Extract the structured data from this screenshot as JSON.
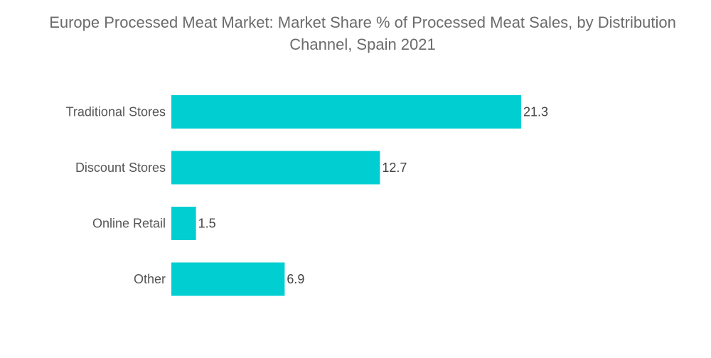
{
  "chart_data": {
    "type": "bar",
    "orientation": "horizontal",
    "title": "Europe Processed Meat Market: Market Share % of Processed Meat Sales, by Distribution Channel, Spain 2021",
    "xlabel": "",
    "ylabel": "",
    "categories": [
      "Traditional Stores",
      "Discount Stores",
      "Online Retail",
      "Other"
    ],
    "values": [
      21.3,
      12.7,
      1.5,
      6.9
    ],
    "xlim": [
      0,
      21.3
    ],
    "grid": false,
    "legend": "none",
    "bar_color": "#00CED1"
  }
}
